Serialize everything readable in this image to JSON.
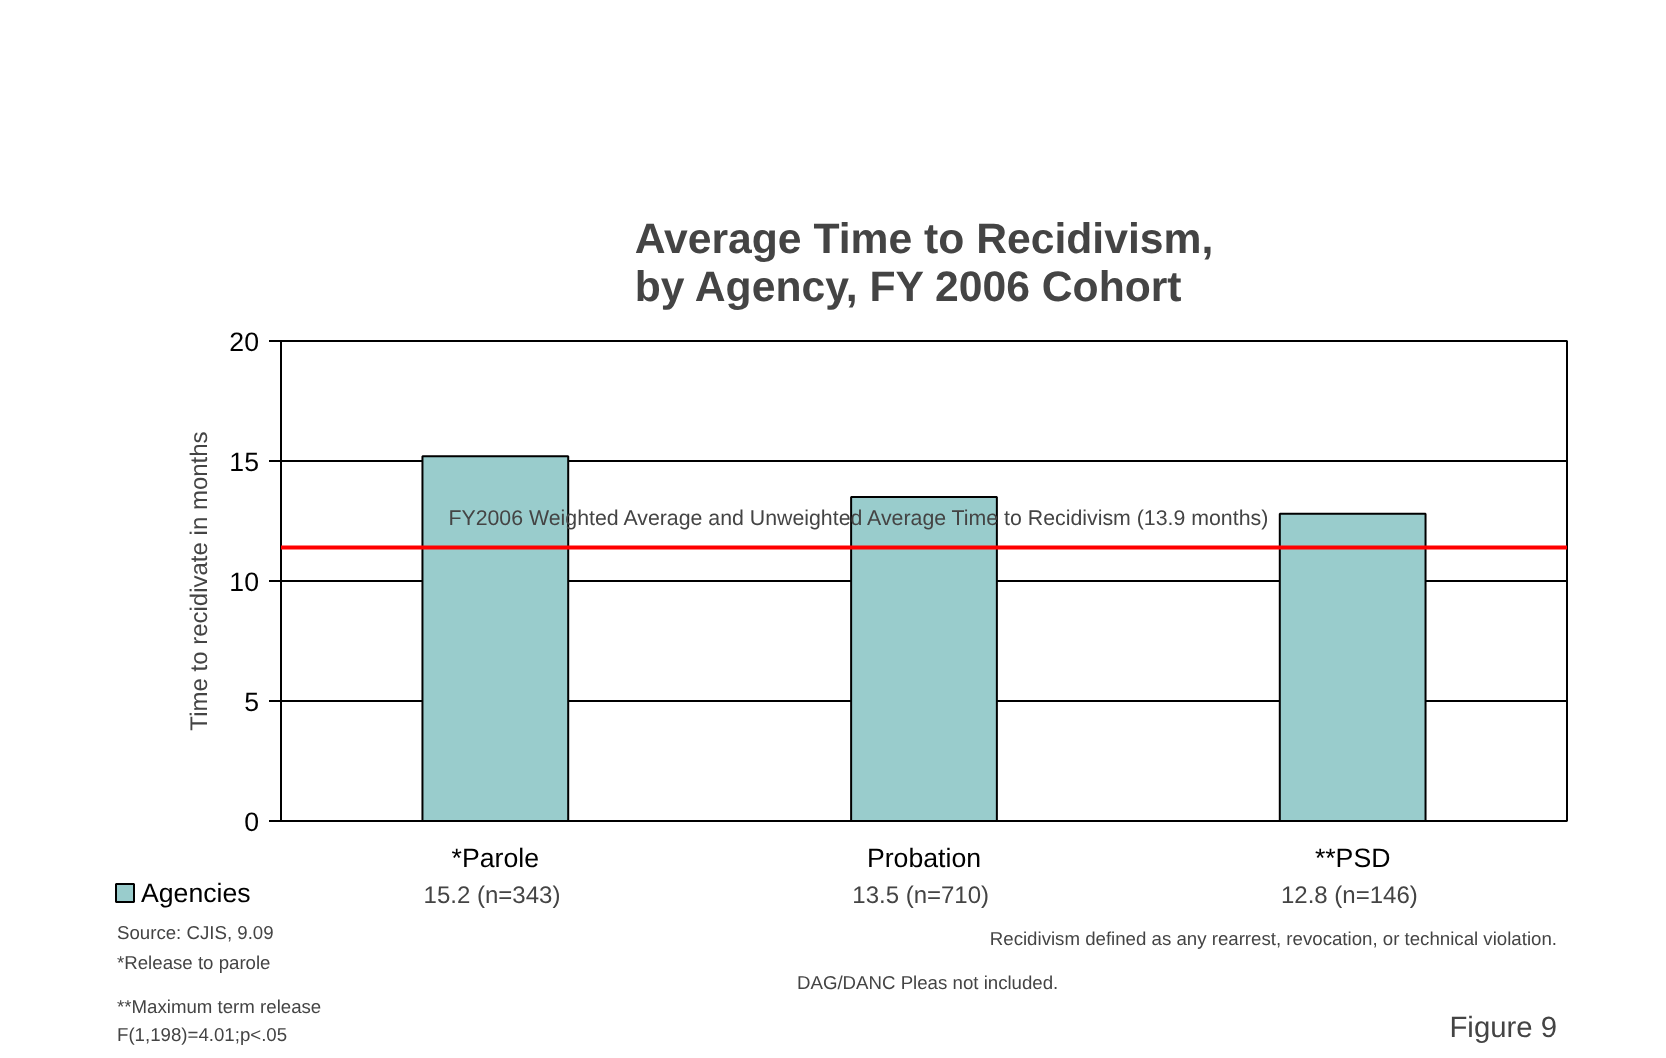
{
  "chart_data": {
    "type": "bar",
    "title": "Average Time to Recidivism,\nby Agency, FY 2006 Cohort",
    "ylabel": "Time to recidivate in months",
    "categories": [
      "*Parole",
      "Probation",
      "**PSD"
    ],
    "series": [
      {
        "name": "Agencies",
        "color": "#99cccc",
        "values": [
          15.2,
          13.5,
          12.8
        ]
      }
    ],
    "value_labels": [
      "15.2  (n=343)",
      "13.5  (n=710)",
      "12.8  (n=146)"
    ],
    "ylim": [
      0,
      20
    ],
    "yticks": [
      0,
      5,
      10,
      15,
      20
    ],
    "grid": "y",
    "legend": "bottom",
    "ref_lines": [
      {
        "axis": "y",
        "value": 11.4,
        "label": "FY2006 Weighted Average and Unweighted Average Time to Recidivism (13.9 months)",
        "color": "#ff0000"
      }
    ],
    "annotations": [
      "Source: CJIS, 9.09",
      "*Release to parole",
      "**Maximum term release",
      "F(1,198)=4.01;p<.05",
      "Recidivism defined as any rearrest, revocation, or technical violation.",
      "DAG/DANC Pleas not included.",
      "Figure 9"
    ]
  }
}
